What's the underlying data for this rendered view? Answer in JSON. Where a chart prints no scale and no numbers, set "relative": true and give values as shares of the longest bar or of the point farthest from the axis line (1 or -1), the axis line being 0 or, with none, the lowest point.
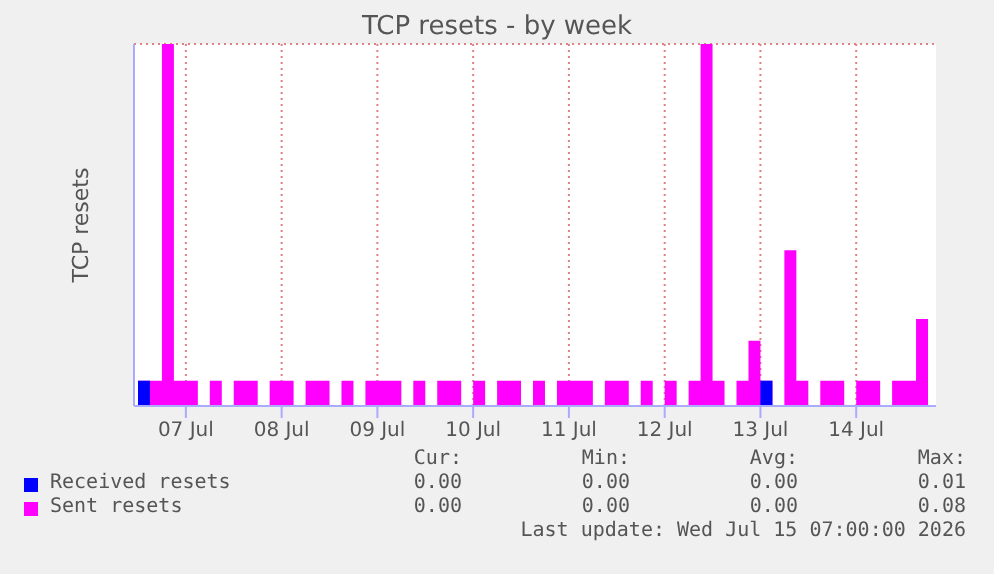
{
  "chart_data": {
    "type": "area",
    "title": "TCP resets - by week",
    "ylabel": "TCP resets",
    "x": [
      "2026-07-06T12:00",
      "2026-07-06T15:00",
      "2026-07-06T18:00",
      "2026-07-06T21:00",
      "2026-07-07T00:00",
      "2026-07-07T03:00",
      "2026-07-07T06:00",
      "2026-07-07T09:00",
      "2026-07-07T12:00",
      "2026-07-07T15:00",
      "2026-07-07T18:00",
      "2026-07-07T21:00",
      "2026-07-08T00:00",
      "2026-07-08T03:00",
      "2026-07-08T06:00",
      "2026-07-08T09:00",
      "2026-07-08T12:00",
      "2026-07-08T15:00",
      "2026-07-08T18:00",
      "2026-07-08T21:00",
      "2026-07-09T00:00",
      "2026-07-09T03:00",
      "2026-07-09T06:00",
      "2026-07-09T09:00",
      "2026-07-09T12:00",
      "2026-07-09T15:00",
      "2026-07-09T18:00",
      "2026-07-09T21:00",
      "2026-07-10T00:00",
      "2026-07-10T03:00",
      "2026-07-10T06:00",
      "2026-07-10T09:00",
      "2026-07-10T12:00",
      "2026-07-10T15:00",
      "2026-07-10T18:00",
      "2026-07-10T21:00",
      "2026-07-11T00:00",
      "2026-07-11T03:00",
      "2026-07-11T06:00",
      "2026-07-11T09:00",
      "2026-07-11T12:00",
      "2026-07-11T15:00",
      "2026-07-11T18:00",
      "2026-07-11T21:00",
      "2026-07-12T00:00",
      "2026-07-12T03:00",
      "2026-07-12T06:00",
      "2026-07-12T09:00",
      "2026-07-12T12:00",
      "2026-07-12T15:00",
      "2026-07-12T18:00",
      "2026-07-12T21:00",
      "2026-07-13T00:00",
      "2026-07-13T03:00",
      "2026-07-13T06:00",
      "2026-07-13T09:00",
      "2026-07-13T12:00",
      "2026-07-13T15:00",
      "2026-07-13T18:00",
      "2026-07-13T21:00",
      "2026-07-14T00:00",
      "2026-07-14T03:00",
      "2026-07-14T06:00",
      "2026-07-14T09:00",
      "2026-07-14T12:00",
      "2026-07-14T15:00",
      "2026-07-14T18:00"
    ],
    "series": [
      {
        "name": "Received resets",
        "color": "#0000ff",
        "values": [
          0.07,
          0,
          0,
          0,
          0,
          0,
          0,
          0,
          0,
          0,
          0,
          0,
          0,
          0,
          0,
          0,
          0,
          0,
          0,
          0,
          0,
          0,
          0,
          0,
          0,
          0,
          0,
          0,
          0,
          0,
          0,
          0,
          0,
          0,
          0,
          0,
          0,
          0,
          0,
          0,
          0,
          0,
          0,
          0,
          0,
          0,
          0,
          0,
          0,
          0,
          0,
          0,
          0.07,
          0,
          0,
          0,
          0,
          0,
          0,
          0,
          0,
          0,
          0,
          0,
          0,
          0,
          0
        ]
      },
      {
        "name": "Sent resets",
        "color": "#ff00ff",
        "values": [
          0.07,
          0.07,
          1,
          0.07,
          0.07,
          0,
          0.07,
          0,
          0.07,
          0.07,
          0,
          0.07,
          0.07,
          0,
          0.07,
          0.07,
          0,
          0.07,
          0,
          0.07,
          0.07,
          0.07,
          0,
          0.07,
          0,
          0.07,
          0.07,
          0,
          0.07,
          0,
          0.07,
          0.07,
          0,
          0.07,
          0,
          0.07,
          0.07,
          0.07,
          0,
          0.07,
          0.07,
          0,
          0.07,
          0,
          0.07,
          0,
          0.07,
          1,
          0.07,
          0,
          0.07,
          0.18,
          0.07,
          0,
          0.43,
          0.07,
          0,
          0.07,
          0.07,
          0,
          0.07,
          0.07,
          0,
          0.07,
          0.07,
          0.24,
          0.07
        ]
      }
    ],
    "xlim": [
      "2026-07-06T11:00",
      "2026-07-14T20:00"
    ],
    "xticks": [
      {
        "value": "2026-07-07",
        "label": "07 Jul"
      },
      {
        "value": "2026-07-08",
        "label": "08 Jul"
      },
      {
        "value": "2026-07-09",
        "label": "09 Jul"
      },
      {
        "value": "2026-07-10",
        "label": "10 Jul"
      },
      {
        "value": "2026-07-11",
        "label": "11 Jul"
      },
      {
        "value": "2026-07-12",
        "label": "12 Jul"
      },
      {
        "value": "2026-07-13",
        "label": "13 Jul"
      },
      {
        "value": "2026-07-14",
        "label": "14 Jul"
      }
    ],
    "relative": true,
    "grid": true,
    "legend": "bottom",
    "marker": "none",
    "annotations": [
      "Cur:",
      "Min:",
      "Avg:",
      "Max:",
      "0.00",
      "0.00",
      "0.00",
      "0.01",
      "0.00",
      "0.00",
      "0.00",
      "0.08",
      "Last update: Wed Jul 15 07:00:00 2026"
    ]
  }
}
